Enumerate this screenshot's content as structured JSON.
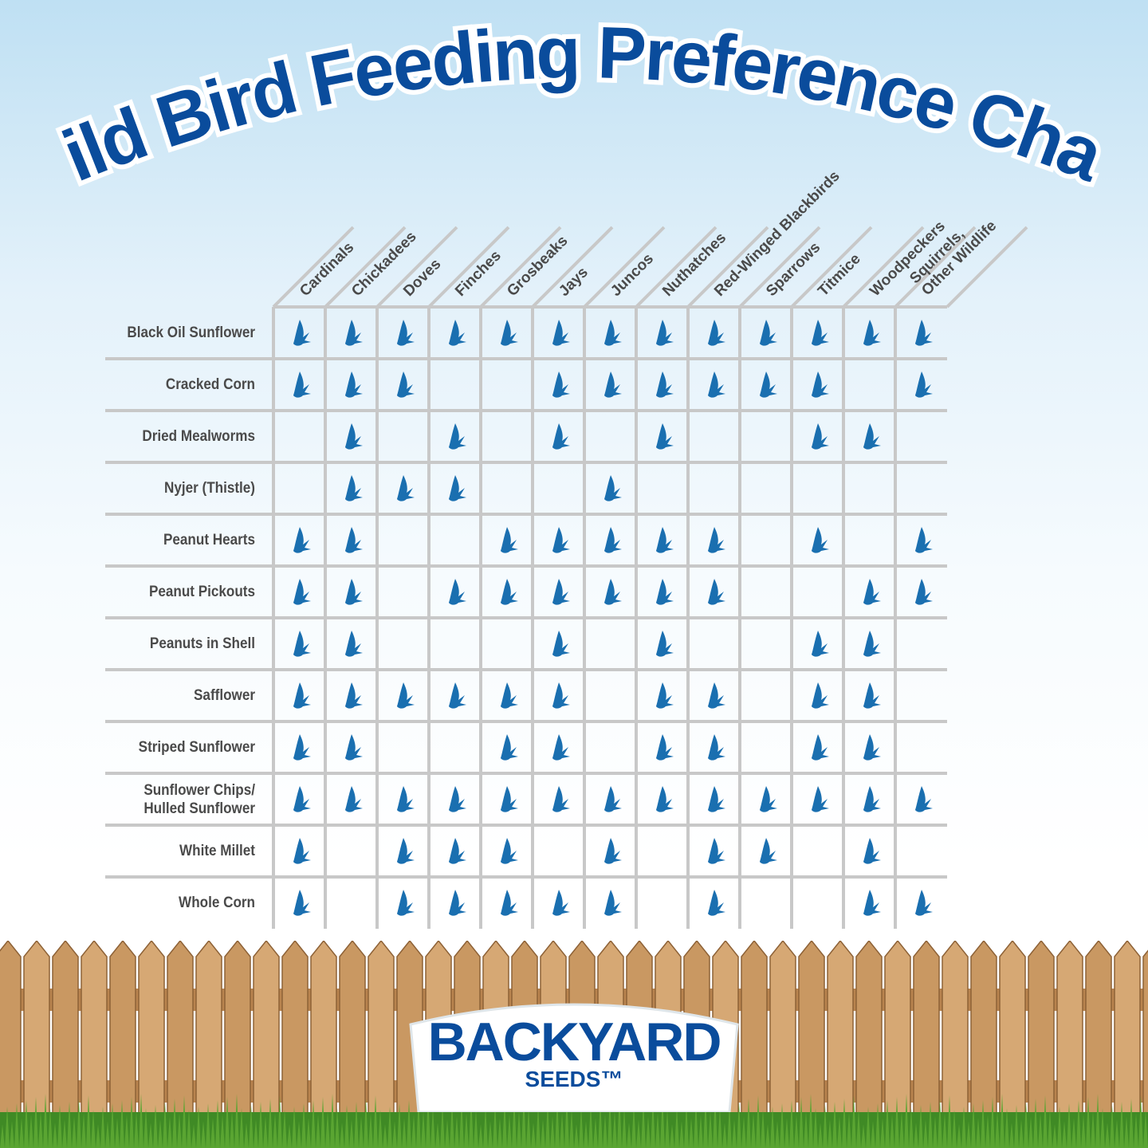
{
  "chart_data": {
    "type": "table",
    "title": "Wild Bird Feeding Preference Chart",
    "columns": [
      "Cardinals",
      "Chickadees",
      "Doves",
      "Finches",
      "Grosbeaks",
      "Jays",
      "Juncos",
      "Nuthatches",
      "Red-Winged Blackbirds",
      "Sparrows",
      "Titmice",
      "Woodpeckers",
      "Squirrels,\nOther Wildlife"
    ],
    "rows": [
      {
        "label": "Black Oil Sunflower",
        "values": [
          1,
          1,
          1,
          1,
          1,
          1,
          1,
          1,
          1,
          1,
          1,
          1,
          1
        ]
      },
      {
        "label": "Cracked Corn",
        "values": [
          1,
          1,
          1,
          0,
          0,
          1,
          1,
          1,
          1,
          1,
          1,
          0,
          1
        ]
      },
      {
        "label": "Dried Mealworms",
        "values": [
          0,
          1,
          0,
          1,
          0,
          1,
          0,
          1,
          0,
          0,
          1,
          1,
          0
        ]
      },
      {
        "label": "Nyjer (Thistle)",
        "values": [
          0,
          1,
          1,
          1,
          0,
          0,
          1,
          0,
          0,
          0,
          0,
          0,
          0
        ]
      },
      {
        "label": "Peanut Hearts",
        "values": [
          1,
          1,
          0,
          0,
          1,
          1,
          1,
          1,
          1,
          0,
          1,
          0,
          1
        ]
      },
      {
        "label": "Peanut Pickouts",
        "values": [
          1,
          1,
          0,
          1,
          1,
          1,
          1,
          1,
          1,
          0,
          0,
          1,
          1
        ]
      },
      {
        "label": "Peanuts in Shell",
        "values": [
          1,
          1,
          0,
          0,
          0,
          1,
          0,
          1,
          0,
          0,
          1,
          1,
          0
        ]
      },
      {
        "label": "Safflower",
        "values": [
          1,
          1,
          1,
          1,
          1,
          1,
          0,
          1,
          1,
          0,
          1,
          1,
          0
        ]
      },
      {
        "label": "Striped Sunflower",
        "values": [
          1,
          1,
          0,
          0,
          1,
          1,
          0,
          1,
          1,
          0,
          1,
          1,
          0
        ]
      },
      {
        "label": "Sunflower Chips/\nHulled Sunflower",
        "values": [
          1,
          1,
          1,
          1,
          1,
          1,
          1,
          1,
          1,
          1,
          1,
          1,
          1
        ]
      },
      {
        "label": "White Millet",
        "values": [
          1,
          0,
          1,
          1,
          1,
          0,
          1,
          0,
          1,
          1,
          0,
          1,
          0
        ]
      },
      {
        "label": "Whole Corn",
        "values": [
          1,
          0,
          1,
          1,
          1,
          1,
          1,
          0,
          1,
          0,
          0,
          1,
          1
        ]
      }
    ],
    "marker_icon": "bird-icon",
    "colors": {
      "title": "#0a4c9c",
      "marker": "#1a6fb0",
      "grid": "#c8c8c8",
      "label": "#4a4a4a"
    }
  },
  "logo": {
    "brand": "BACKYARD",
    "sub": "SEEDS™"
  }
}
